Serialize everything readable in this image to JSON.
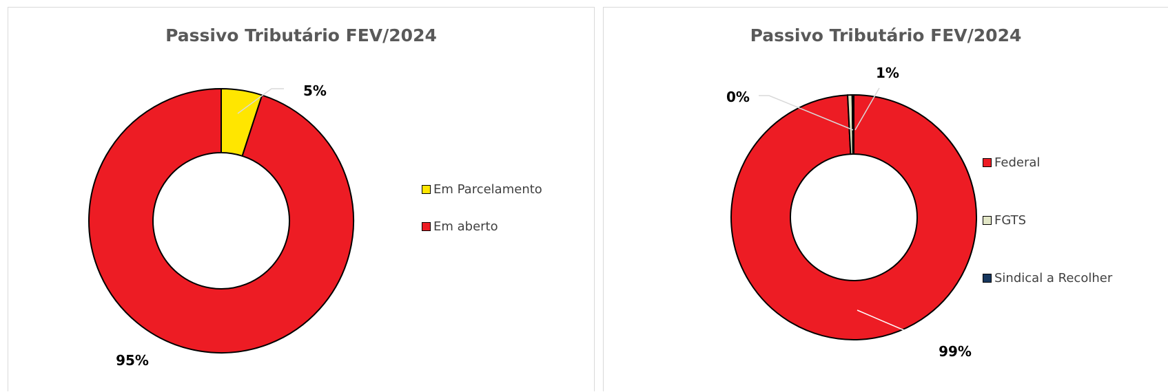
{
  "chart_data": [
    {
      "type": "pie",
      "title": "Passivo Tributário FEV/2024",
      "slices": [
        {
          "name": "Em Parcelamento",
          "value": 5,
          "label": "5%",
          "color": "#ffe600"
        },
        {
          "name": "Em aberto",
          "value": 95,
          "label": "95%",
          "color": "#ed1c24"
        }
      ],
      "legend_position": "right"
    },
    {
      "type": "pie",
      "title": "Passivo Tributário FEV/2024",
      "slices": [
        {
          "name": "Federal",
          "value": 99.2,
          "label": "99%",
          "color": "#ed1c24"
        },
        {
          "name": "FGTS",
          "value": 0.6,
          "label": "1%",
          "color": "#e2e6c6"
        },
        {
          "name": "Sindical a Recolher",
          "value": 0.2,
          "label": "0%",
          "color": "#17375e"
        }
      ],
      "legend_position": "right"
    }
  ]
}
